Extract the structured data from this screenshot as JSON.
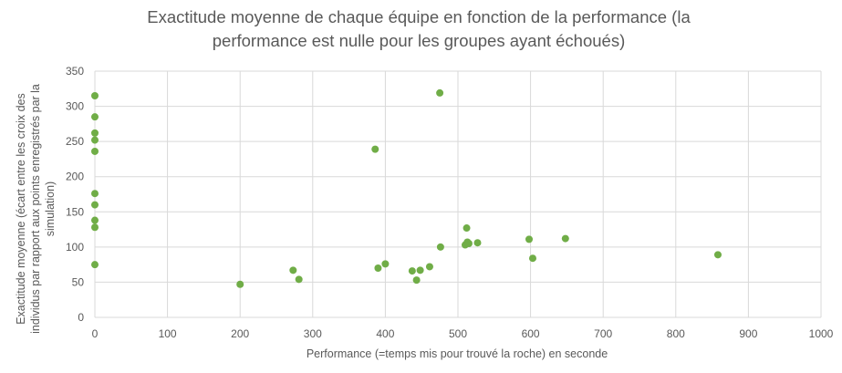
{
  "chart_data": {
    "type": "scatter",
    "title_lines": [
      "Exactitude moyenne de chaque équipe en fonction de la performance (la",
      "performance est nulle pour les groupes ayant échoués)"
    ],
    "xlabel": "Performance (=temps mis pour trouvé la roche) en seconde",
    "ylabel_lines": [
      "Exactitude moyenne (écart entre les croix des",
      "individus par rapport aux points enregistrés par la",
      "simulation)"
    ],
    "xlim": [
      0,
      1000
    ],
    "ylim": [
      0,
      350
    ],
    "x_ticks": [
      "0",
      "100",
      "200",
      "300",
      "400",
      "500",
      "600",
      "700",
      "800",
      "900",
      "1000"
    ],
    "y_ticks": [
      "0",
      "50",
      "100",
      "150",
      "200",
      "250",
      "300",
      "350"
    ],
    "grid": true,
    "marker_color": "#70ad47",
    "points": [
      {
        "x": 0,
        "y": 315
      },
      {
        "x": 0,
        "y": 285
      },
      {
        "x": 0,
        "y": 262
      },
      {
        "x": 0,
        "y": 252
      },
      {
        "x": 0,
        "y": 236
      },
      {
        "x": 0,
        "y": 176
      },
      {
        "x": 0,
        "y": 160
      },
      {
        "x": 0,
        "y": 138
      },
      {
        "x": 0,
        "y": 128
      },
      {
        "x": 0,
        "y": 75
      },
      {
        "x": 200,
        "y": 47
      },
      {
        "x": 273,
        "y": 67
      },
      {
        "x": 281,
        "y": 54
      },
      {
        "x": 386,
        "y": 239
      },
      {
        "x": 390,
        "y": 70
      },
      {
        "x": 400,
        "y": 76
      },
      {
        "x": 437,
        "y": 66
      },
      {
        "x": 443,
        "y": 53
      },
      {
        "x": 448,
        "y": 67
      },
      {
        "x": 461,
        "y": 72
      },
      {
        "x": 475,
        "y": 319
      },
      {
        "x": 476,
        "y": 100
      },
      {
        "x": 510,
        "y": 103
      },
      {
        "x": 512,
        "y": 127
      },
      {
        "x": 513,
        "y": 107
      },
      {
        "x": 515,
        "y": 105
      },
      {
        "x": 527,
        "y": 106
      },
      {
        "x": 598,
        "y": 111
      },
      {
        "x": 603,
        "y": 84
      },
      {
        "x": 648,
        "y": 112
      },
      {
        "x": 858,
        "y": 89
      }
    ]
  }
}
